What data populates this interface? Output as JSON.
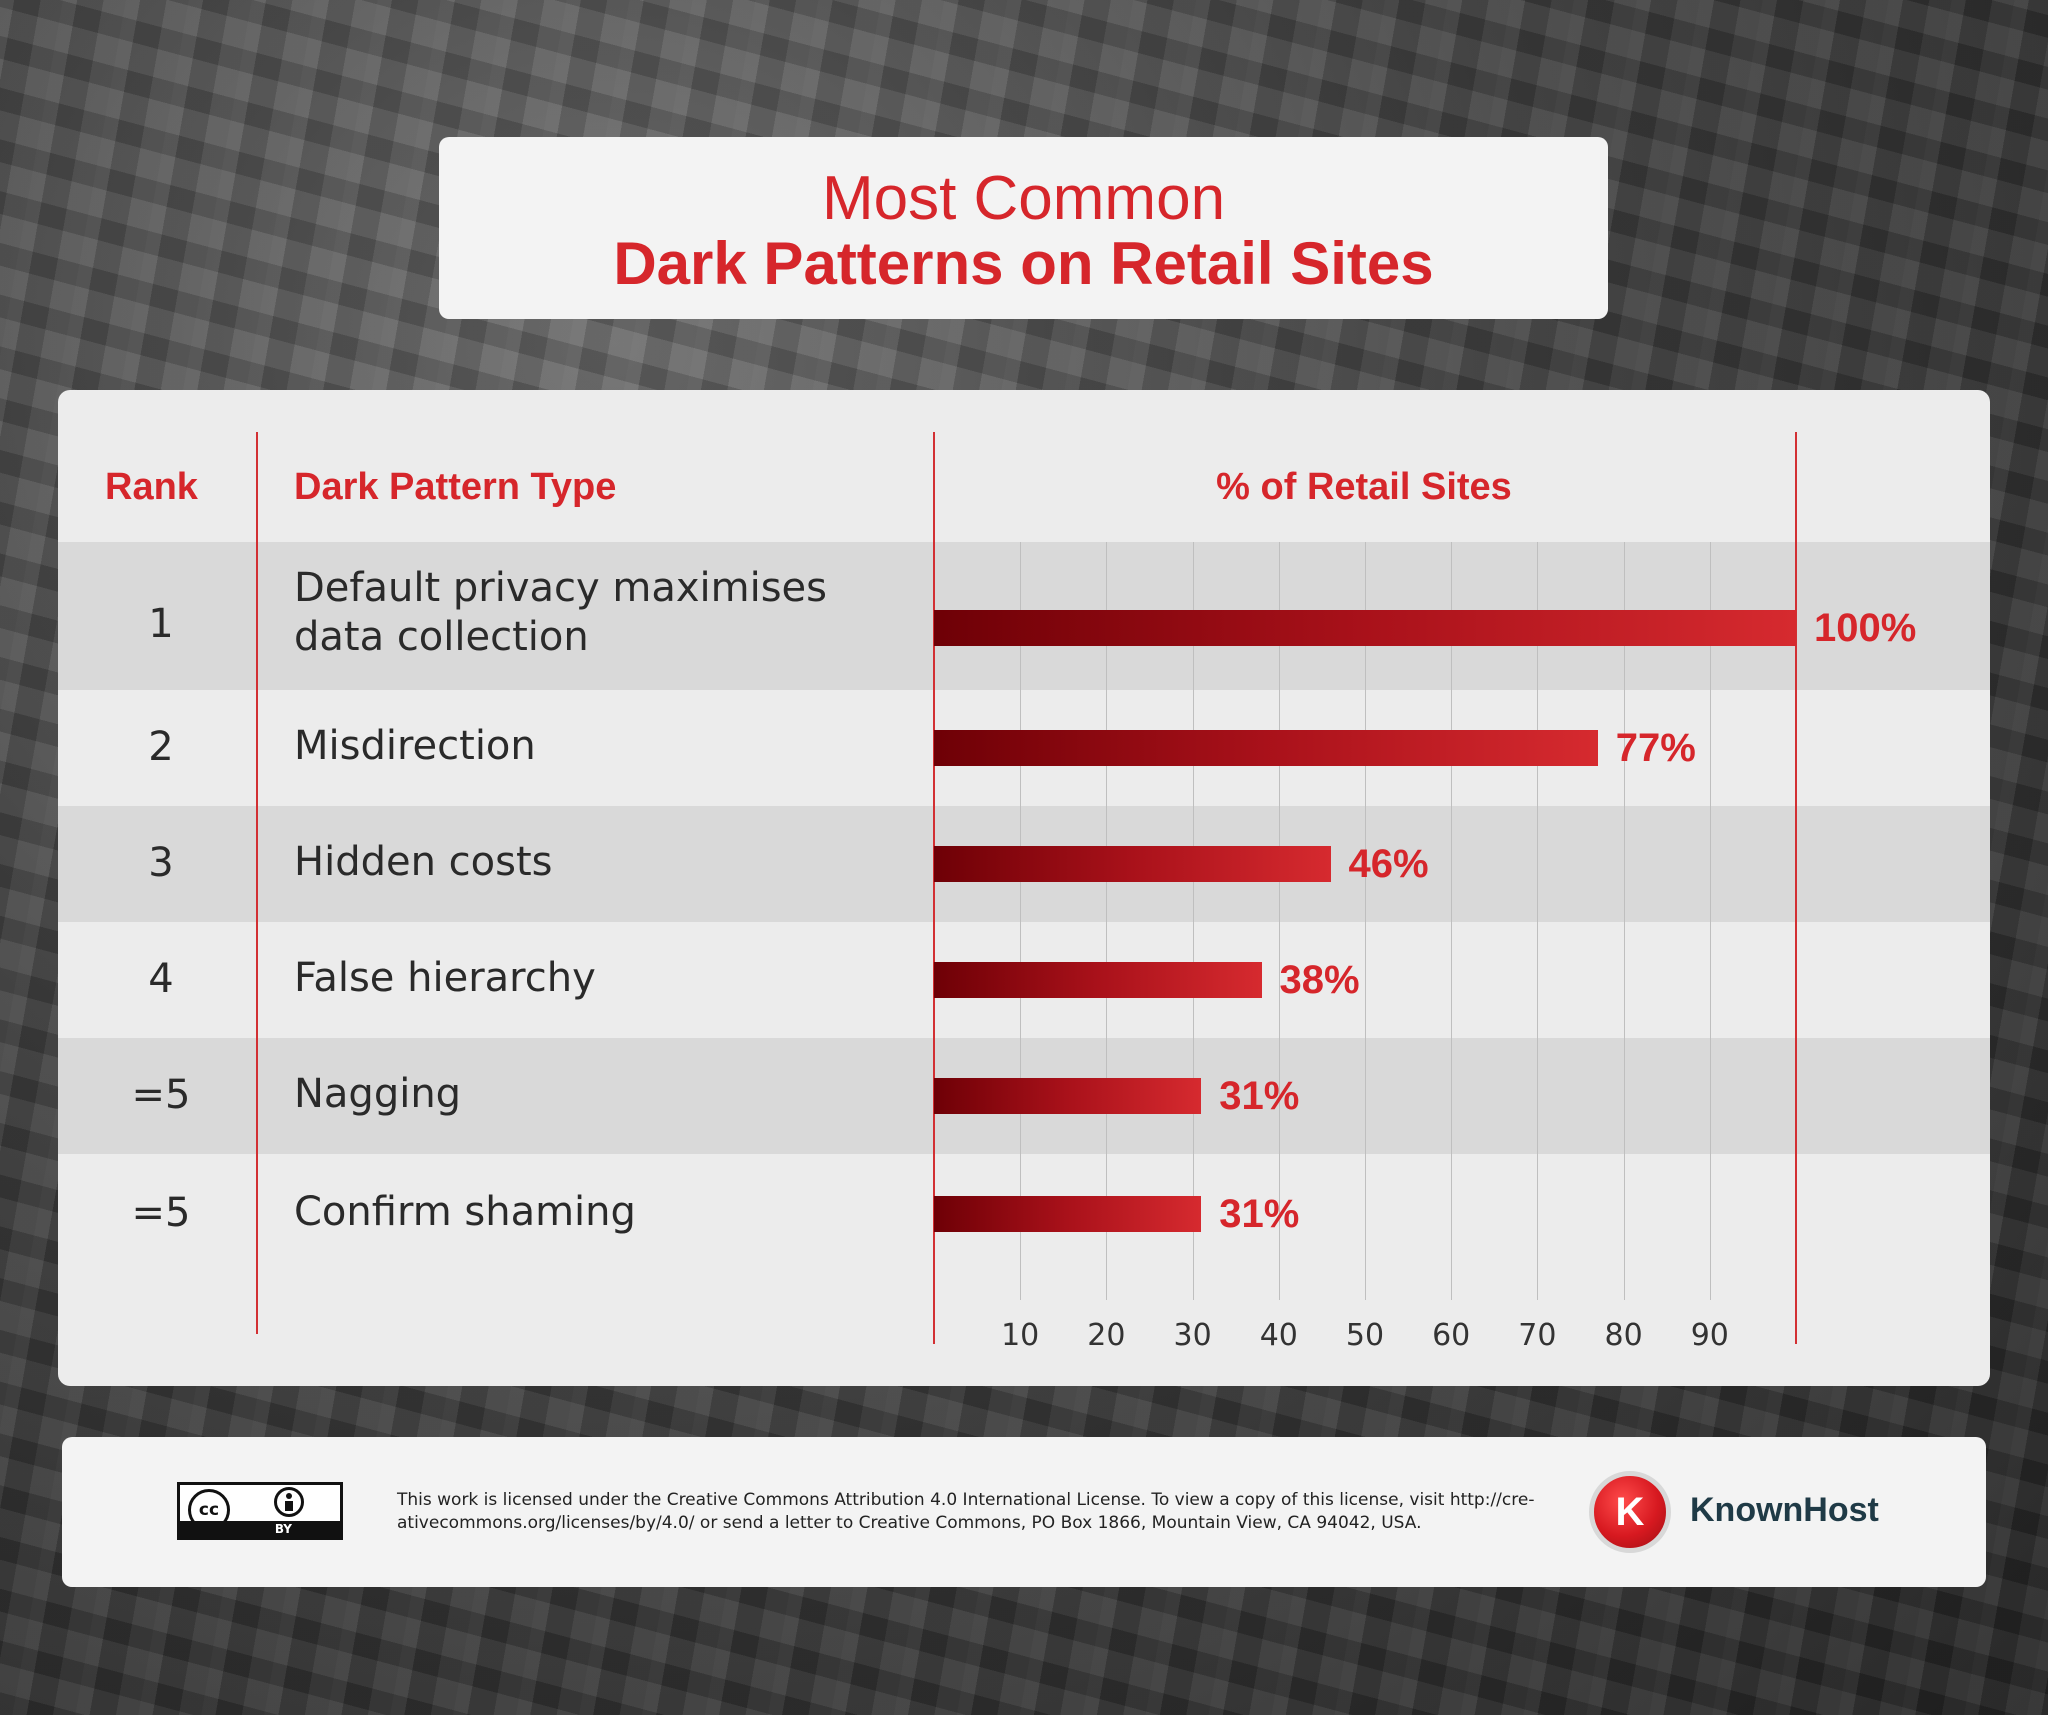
{
  "title": {
    "line1": "Most Common",
    "line2": "Dark Patterns on Retail Sites"
  },
  "table": {
    "headers": {
      "rank": "Rank",
      "type": "Dark Pattern Type",
      "percent": "% of Retail Sites"
    }
  },
  "chart_data": {
    "type": "bar",
    "orientation": "horizontal",
    "title": "Most Common Dark Patterns on Retail Sites",
    "xlabel": "% of Retail Sites",
    "xlim": [
      0,
      100
    ],
    "x_ticks": [
      10,
      20,
      30,
      40,
      50,
      60,
      70,
      80,
      90
    ],
    "grid": true,
    "rows": [
      {
        "rank": "1",
        "type_lines": [
          "Default privacy maximises",
          "data collection"
        ],
        "value": 100,
        "label": "100%"
      },
      {
        "rank": "2",
        "type_lines": [
          "Misdirection"
        ],
        "value": 77,
        "label": "77%"
      },
      {
        "rank": "3",
        "type_lines": [
          "Hidden costs"
        ],
        "value": 46,
        "label": "46%"
      },
      {
        "rank": "4",
        "type_lines": [
          "False hierarchy"
        ],
        "value": 38,
        "label": "38%"
      },
      {
        "rank": "=5",
        "type_lines": [
          "Nagging"
        ],
        "value": 31,
        "label": "31%"
      },
      {
        "rank": "=5",
        "type_lines": [
          "Confirm shaming"
        ],
        "value": 31,
        "label": "31%"
      }
    ],
    "colors": {
      "accent": "#d6262b",
      "bar_dark": "#6e0006",
      "bar_light": "#d62a2f"
    }
  },
  "footer": {
    "cc_icon": "cc-icon",
    "cc_by": "BY",
    "license_text": "This work is licensed under the Creative Commons Attribution 4.0 International License. To view a copy of this license, visit http://cre-ativecommons.org/licenses/by/4.0/ or send a letter to Creative Commons, PO Box 1866, Mountain View, CA 94042, USA.",
    "brand_name": "KnownHost",
    "brand_icon": "knownhost-logo-icon"
  }
}
